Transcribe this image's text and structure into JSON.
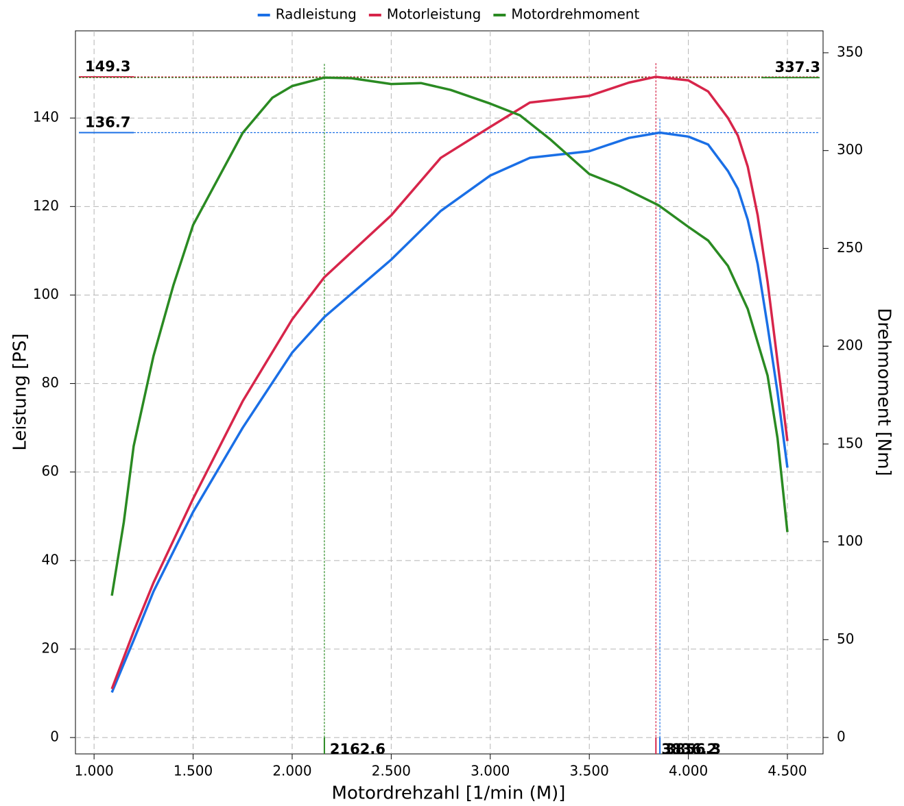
{
  "chart_data": {
    "type": "line",
    "x_label": "Motordrehzahl [1/min (M)]",
    "y_label": "Leistung [PS]",
    "y2_label": "Drehmoment [Nm]",
    "xlim": [
      906,
      4680
    ],
    "xticks": [
      {
        "value": 1000,
        "label": "1.000"
      },
      {
        "value": 1500,
        "label": "1.500"
      },
      {
        "value": 2000,
        "label": "2.000"
      },
      {
        "value": 2500,
        "label": "2.500"
      },
      {
        "value": 3000,
        "label": "3.000"
      },
      {
        "value": 3500,
        "label": "3.500"
      },
      {
        "value": 4000,
        "label": "4.000"
      },
      {
        "value": 4500,
        "label": "4.500"
      }
    ],
    "ylim": [
      -3.7,
      159.7
    ],
    "yticks": [
      0,
      20,
      40,
      60,
      80,
      100,
      120,
      140
    ],
    "y2lim": [
      -8.4,
      361.2
    ],
    "y2ticks": [
      0,
      50,
      100,
      150,
      200,
      250,
      300,
      350
    ],
    "grid": true,
    "legend": "top",
    "series": [
      {
        "name": "Radleistung",
        "color": "#1a6fe6",
        "axis": "y",
        "x": [
          1090,
          1200,
          1300,
          1500,
          1750,
          2000,
          2162,
          2500,
          2750,
          3000,
          3200,
          3500,
          3600,
          3700,
          3856,
          4000,
          4100,
          4200,
          4250,
          4300,
          4350,
          4400,
          4450,
          4500
        ],
        "values": [
          10.2,
          22,
          33,
          51,
          70,
          87,
          95,
          108,
          119,
          127,
          131,
          132.5,
          134,
          135.5,
          136.7,
          135.8,
          134,
          128,
          124,
          117,
          107,
          93,
          78,
          61
        ]
      },
      {
        "name": "Motorleistung",
        "color": "#d7254a",
        "axis": "y",
        "x": [
          1090,
          1200,
          1300,
          1500,
          1750,
          2000,
          2162,
          2500,
          2750,
          3000,
          3200,
          3500,
          3600,
          3700,
          3836,
          4000,
          4100,
          4200,
          4250,
          4300,
          4350,
          4400,
          4450,
          4500
        ],
        "values": [
          11,
          24,
          35,
          54,
          76,
          94.5,
          104,
          118,
          131,
          138,
          143.5,
          145,
          146.5,
          148,
          149.3,
          148.5,
          146,
          140,
          136,
          129,
          118,
          103,
          85,
          67
        ]
      },
      {
        "name": "Motordrehmoment",
        "color": "#2a8a22",
        "axis": "y2",
        "x": [
          1090,
          1150,
          1200,
          1300,
          1400,
          1500,
          1750,
          1900,
          2000,
          2162,
          2300,
          2500,
          2650,
          2800,
          3000,
          3150,
          3300,
          3500,
          3650,
          3850,
          4000,
          4100,
          4200,
          4300,
          4400,
          4450,
          4500
        ],
        "values": [
          72.5,
          110,
          149,
          195,
          231,
          262,
          309,
          327,
          333,
          337.3,
          337,
          334,
          334.5,
          331,
          324,
          318,
          306,
          288,
          282,
          272,
          261,
          254,
          241,
          219,
          185,
          153,
          105
        ]
      }
    ],
    "markers": [
      {
        "x": 3836.2,
        "y": 149.3,
        "axis": "y",
        "color": "#d7254a",
        "label_side": "left"
      },
      {
        "x": 3856.3,
        "y": 136.7,
        "axis": "y",
        "color": "#1a6fe6",
        "label_side": "left"
      },
      {
        "x": 2162.6,
        "y": 337.3,
        "axis": "y2",
        "color": "#2a8a22",
        "label_side": "right"
      }
    ]
  }
}
